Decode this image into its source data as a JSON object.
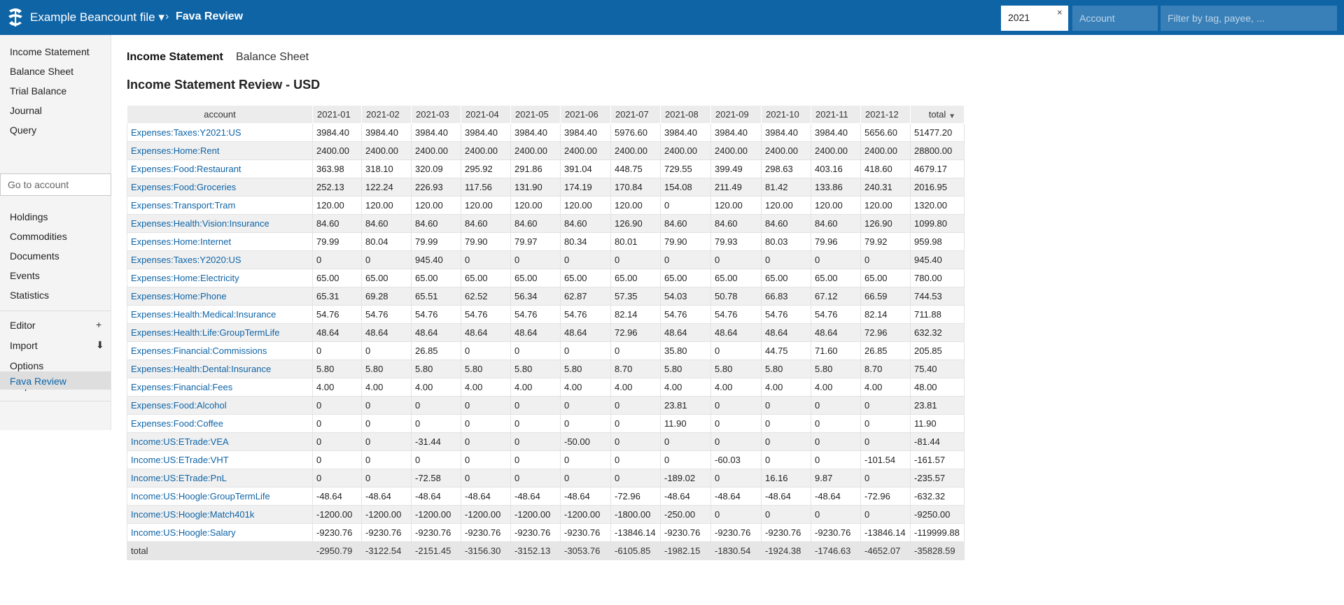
{
  "header": {
    "file_title": "Example Beancount file ▾",
    "crumb_separator": "›",
    "page": "Fava Review",
    "time_filter": "2021",
    "time_clear": "×",
    "account_placeholder": "Account",
    "filter_placeholder": "Filter by tag, payee, ..."
  },
  "sidebar": {
    "reports": [
      "Income Statement",
      "Balance Sheet",
      "Trial Balance",
      "Journal",
      "Query"
    ],
    "goto_placeholder": "Go to account",
    "views": [
      "Holdings",
      "Commodities",
      "Documents",
      "Events",
      "Statistics"
    ],
    "tools": [
      {
        "label": "Editor",
        "suffix": "+"
      },
      {
        "label": "Import",
        "suffix": "⬇"
      },
      {
        "label": "Options",
        "suffix": ""
      },
      {
        "label": "Help",
        "suffix": ""
      }
    ],
    "extension": "Fava Review"
  },
  "tabs": [
    "Income Statement",
    "Balance Sheet"
  ],
  "title": "Income Statement Review - USD",
  "table": {
    "columns": [
      "account",
      "2021-01",
      "2021-02",
      "2021-03",
      "2021-04",
      "2021-05",
      "2021-06",
      "2021-07",
      "2021-08",
      "2021-09",
      "2021-10",
      "2021-11",
      "2021-12",
      "total"
    ],
    "rows": [
      [
        "Expenses:Taxes:Y2021:US",
        "3984.40",
        "3984.40",
        "3984.40",
        "3984.40",
        "3984.40",
        "3984.40",
        "5976.60",
        "3984.40",
        "3984.40",
        "3984.40",
        "3984.40",
        "5656.60",
        "51477.20"
      ],
      [
        "Expenses:Home:Rent",
        "2400.00",
        "2400.00",
        "2400.00",
        "2400.00",
        "2400.00",
        "2400.00",
        "2400.00",
        "2400.00",
        "2400.00",
        "2400.00",
        "2400.00",
        "2400.00",
        "28800.00"
      ],
      [
        "Expenses:Food:Restaurant",
        "363.98",
        "318.10",
        "320.09",
        "295.92",
        "291.86",
        "391.04",
        "448.75",
        "729.55",
        "399.49",
        "298.63",
        "403.16",
        "418.60",
        "4679.17"
      ],
      [
        "Expenses:Food:Groceries",
        "252.13",
        "122.24",
        "226.93",
        "117.56",
        "131.90",
        "174.19",
        "170.84",
        "154.08",
        "211.49",
        "81.42",
        "133.86",
        "240.31",
        "2016.95"
      ],
      [
        "Expenses:Transport:Tram",
        "120.00",
        "120.00",
        "120.00",
        "120.00",
        "120.00",
        "120.00",
        "120.00",
        "0",
        "120.00",
        "120.00",
        "120.00",
        "120.00",
        "1320.00"
      ],
      [
        "Expenses:Health:Vision:Insurance",
        "84.60",
        "84.60",
        "84.60",
        "84.60",
        "84.60",
        "84.60",
        "126.90",
        "84.60",
        "84.60",
        "84.60",
        "84.60",
        "126.90",
        "1099.80"
      ],
      [
        "Expenses:Home:Internet",
        "79.99",
        "80.04",
        "79.99",
        "79.90",
        "79.97",
        "80.34",
        "80.01",
        "79.90",
        "79.93",
        "80.03",
        "79.96",
        "79.92",
        "959.98"
      ],
      [
        "Expenses:Taxes:Y2020:US",
        "0",
        "0",
        "945.40",
        "0",
        "0",
        "0",
        "0",
        "0",
        "0",
        "0",
        "0",
        "0",
        "945.40"
      ],
      [
        "Expenses:Home:Electricity",
        "65.00",
        "65.00",
        "65.00",
        "65.00",
        "65.00",
        "65.00",
        "65.00",
        "65.00",
        "65.00",
        "65.00",
        "65.00",
        "65.00",
        "780.00"
      ],
      [
        "Expenses:Home:Phone",
        "65.31",
        "69.28",
        "65.51",
        "62.52",
        "56.34",
        "62.87",
        "57.35",
        "54.03",
        "50.78",
        "66.83",
        "67.12",
        "66.59",
        "744.53"
      ],
      [
        "Expenses:Health:Medical:Insurance",
        "54.76",
        "54.76",
        "54.76",
        "54.76",
        "54.76",
        "54.76",
        "82.14",
        "54.76",
        "54.76",
        "54.76",
        "54.76",
        "82.14",
        "711.88"
      ],
      [
        "Expenses:Health:Life:GroupTermLife",
        "48.64",
        "48.64",
        "48.64",
        "48.64",
        "48.64",
        "48.64",
        "72.96",
        "48.64",
        "48.64",
        "48.64",
        "48.64",
        "72.96",
        "632.32"
      ],
      [
        "Expenses:Financial:Commissions",
        "0",
        "0",
        "26.85",
        "0",
        "0",
        "0",
        "0",
        "35.80",
        "0",
        "44.75",
        "71.60",
        "26.85",
        "205.85"
      ],
      [
        "Expenses:Health:Dental:Insurance",
        "5.80",
        "5.80",
        "5.80",
        "5.80",
        "5.80",
        "5.80",
        "8.70",
        "5.80",
        "5.80",
        "5.80",
        "5.80",
        "8.70",
        "75.40"
      ],
      [
        "Expenses:Financial:Fees",
        "4.00",
        "4.00",
        "4.00",
        "4.00",
        "4.00",
        "4.00",
        "4.00",
        "4.00",
        "4.00",
        "4.00",
        "4.00",
        "4.00",
        "48.00"
      ],
      [
        "Expenses:Food:Alcohol",
        "0",
        "0",
        "0",
        "0",
        "0",
        "0",
        "0",
        "23.81",
        "0",
        "0",
        "0",
        "0",
        "23.81"
      ],
      [
        "Expenses:Food:Coffee",
        "0",
        "0",
        "0",
        "0",
        "0",
        "0",
        "0",
        "11.90",
        "0",
        "0",
        "0",
        "0",
        "11.90"
      ],
      [
        "Income:US:ETrade:VEA",
        "0",
        "0",
        "-31.44",
        "0",
        "0",
        "-50.00",
        "0",
        "0",
        "0",
        "0",
        "0",
        "0",
        "-81.44"
      ],
      [
        "Income:US:ETrade:VHT",
        "0",
        "0",
        "0",
        "0",
        "0",
        "0",
        "0",
        "0",
        "-60.03",
        "0",
        "0",
        "-101.54",
        "-161.57"
      ],
      [
        "Income:US:ETrade:PnL",
        "0",
        "0",
        "-72.58",
        "0",
        "0",
        "0",
        "0",
        "-189.02",
        "0",
        "16.16",
        "9.87",
        "0",
        "-235.57"
      ],
      [
        "Income:US:Hoogle:GroupTermLife",
        "-48.64",
        "-48.64",
        "-48.64",
        "-48.64",
        "-48.64",
        "-48.64",
        "-72.96",
        "-48.64",
        "-48.64",
        "-48.64",
        "-48.64",
        "-72.96",
        "-632.32"
      ],
      [
        "Income:US:Hoogle:Match401k",
        "-1200.00",
        "-1200.00",
        "-1200.00",
        "-1200.00",
        "-1200.00",
        "-1200.00",
        "-1800.00",
        "-250.00",
        "0",
        "0",
        "0",
        "0",
        "-9250.00"
      ],
      [
        "Income:US:Hoogle:Salary",
        "-9230.76",
        "-9230.76",
        "-9230.76",
        "-9230.76",
        "-9230.76",
        "-9230.76",
        "-13846.14",
        "-9230.76",
        "-9230.76",
        "-9230.76",
        "-9230.76",
        "-13846.14",
        "-119999.88"
      ]
    ],
    "total_row": [
      "total",
      "-2950.79",
      "-3122.54",
      "-2151.45",
      "-3156.30",
      "-3152.13",
      "-3053.76",
      "-6105.85",
      "-1982.15",
      "-1830.54",
      "-1924.38",
      "-1746.63",
      "-4652.07",
      "-35828.59"
    ]
  }
}
